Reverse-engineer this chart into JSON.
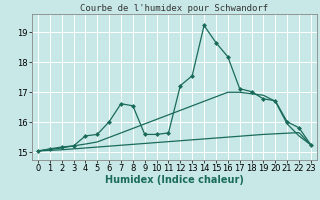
{
  "xlabel": "Humidex (Indice chaleur)",
  "xlim": [
    -0.5,
    23.5
  ],
  "ylim": [
    14.75,
    19.6
  ],
  "yticks": [
    15,
    16,
    17,
    18,
    19
  ],
  "xticks": [
    0,
    1,
    2,
    3,
    4,
    5,
    6,
    7,
    8,
    9,
    10,
    11,
    12,
    13,
    14,
    15,
    16,
    17,
    18,
    19,
    20,
    21,
    22,
    23
  ],
  "bg_color": "#c8e8e8",
  "line_color": "#1a6b5a",
  "grid_color": "#ffffff",
  "title": "Courbe de l'humidex pour Schwandorf",
  "lines": [
    {
      "x": [
        0,
        1,
        2,
        3,
        4,
        5,
        6,
        7,
        8,
        9,
        10,
        11,
        12,
        13,
        14,
        15,
        16,
        17,
        18,
        19,
        20,
        21,
        22,
        23
      ],
      "y": [
        15.05,
        15.07,
        15.09,
        15.12,
        15.15,
        15.18,
        15.21,
        15.24,
        15.27,
        15.3,
        15.33,
        15.36,
        15.39,
        15.42,
        15.45,
        15.48,
        15.51,
        15.54,
        15.57,
        15.6,
        15.62,
        15.64,
        15.66,
        15.25
      ],
      "marker": null,
      "linewidth": 0.9
    },
    {
      "x": [
        0,
        1,
        2,
        3,
        4,
        5,
        6,
        7,
        8,
        9,
        10,
        11,
        12,
        13,
        14,
        15,
        16,
        17,
        18,
        19,
        20,
        21,
        22,
        23
      ],
      "y": [
        15.05,
        15.1,
        15.15,
        15.22,
        15.28,
        15.35,
        15.5,
        15.65,
        15.8,
        15.95,
        16.1,
        16.25,
        16.4,
        16.55,
        16.7,
        16.85,
        17.0,
        17.0,
        16.95,
        16.9,
        16.7,
        15.95,
        15.55,
        15.25
      ],
      "marker": null,
      "linewidth": 0.9
    },
    {
      "x": [
        0,
        1,
        2,
        3,
        4,
        5,
        6,
        7,
        8,
        9,
        10,
        11,
        12,
        13,
        14,
        15,
        16,
        17,
        18,
        19,
        20,
        21,
        22,
        23
      ],
      "y": [
        15.05,
        15.12,
        15.18,
        15.22,
        15.55,
        15.6,
        16.02,
        16.62,
        16.55,
        15.6,
        15.6,
        15.65,
        17.22,
        17.55,
        19.22,
        18.65,
        18.18,
        17.12,
        17.02,
        16.78,
        16.72,
        16.02,
        15.82,
        15.25
      ],
      "marker": "D",
      "markersize": 2.0,
      "linewidth": 0.9
    }
  ]
}
